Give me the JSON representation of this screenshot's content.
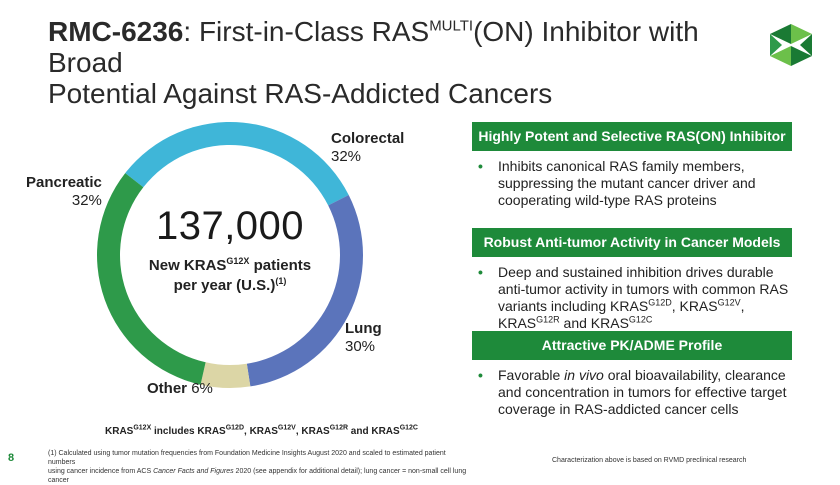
{
  "title": {
    "drug": "RMC-6236",
    "part1": ": First-in-Class RAS",
    "sup": "MULTI",
    "part2": "(ON) Inhibitor with Broad",
    "line2": "Potential Against RAS-Addicted Cancers"
  },
  "center": {
    "number": "137,000",
    "line1_a": "New KRAS",
    "line1_sup": "G12X",
    "line1_b": " patients",
    "line2_a": "per year (U.S.)",
    "line2_sup": "(1)"
  },
  "chart_data": {
    "type": "pie",
    "style": "donut",
    "categories": [
      "Colorectal",
      "Lung",
      "Other",
      "Pancreatic"
    ],
    "values": [
      32,
      30,
      6,
      32
    ],
    "labels": [
      "32%",
      "30%",
      "6%",
      "32%"
    ],
    "colors": [
      "#3fb6d8",
      "#5b74bb",
      "#dcd6a6",
      "#2e9a4a"
    ]
  },
  "panels": [
    {
      "header": "Highly Potent and Selective RAS(ON) Inhibitor",
      "bullet": "•",
      "text": "Inhibits canonical RAS family members, suppressing the mutant cancer driver and cooperating wild-type RAS proteins"
    },
    {
      "header": "Robust Anti-tumor Activity in Cancer Models",
      "bullet": "•",
      "text_a": "Deep and sustained inhibition drives durable anti-tumor activity in tumors with common RAS variants including KRAS",
      "sup1": "G12D",
      "text_b": ", KRAS",
      "sup2": "G12V",
      "text_c": ", KRAS",
      "sup3": "G12R",
      "text_d": " and KRAS",
      "sup4": "G12C"
    },
    {
      "header": "Attractive PK/ADME Profile",
      "bullet": "•",
      "text_a": "Favorable ",
      "text_italic": "in vivo",
      "text_b": " oral bioavailability, clearance and concentration in tumors for effective target coverage in RAS-addicted cancer cells"
    }
  ],
  "note": {
    "a": "KRAS",
    "s1": "G12X",
    "b": " includes KRAS",
    "s2": "G12D",
    "c": ", KRAS",
    "s3": "G12V",
    "d": ", KRAS",
    "s4": "G12R",
    "e": " and KRAS",
    "s5": "G12C"
  },
  "footer": {
    "page": "8",
    "line1": "(1) Calculated using tumor mutation frequencies from Foundation Medicine Insights August 2020 and scaled to estimated patient numbers",
    "line2_a": "using cancer incidence from ACS ",
    "line2_italic": "Cancer Facts and Figures",
    "line2_b": " 2020 (see appendix for additional detail); lung cancer = non-small cell lung cancer",
    "right": "Characterization above is based on RVMD preclinical research"
  },
  "colors": {
    "accent": "#1e8a3a",
    "logo_dark": "#1a7a34",
    "logo_light": "#6cc04a"
  }
}
